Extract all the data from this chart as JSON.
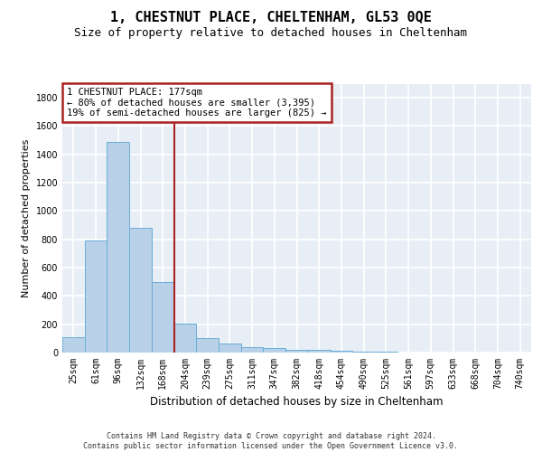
{
  "title": "1, CHESTNUT PLACE, CHELTENHAM, GL53 0QE",
  "subtitle": "Size of property relative to detached houses in Cheltenham",
  "xlabel": "Distribution of detached houses by size in Cheltenham",
  "ylabel": "Number of detached properties",
  "categories": [
    "25sqm",
    "61sqm",
    "96sqm",
    "132sqm",
    "168sqm",
    "204sqm",
    "239sqm",
    "275sqm",
    "311sqm",
    "347sqm",
    "382sqm",
    "418sqm",
    "454sqm",
    "490sqm",
    "525sqm",
    "561sqm",
    "597sqm",
    "633sqm",
    "668sqm",
    "704sqm",
    "740sqm"
  ],
  "values": [
    110,
    790,
    1490,
    880,
    500,
    205,
    100,
    65,
    40,
    30,
    22,
    18,
    10,
    5,
    4,
    3,
    2,
    2,
    1,
    1,
    1
  ],
  "bar_color": "#b8d0e8",
  "bar_edgecolor": "#6aaed6",
  "vline_color": "#aa2222",
  "annotation_box_edgecolor": "#aa2222",
  "fig_bg": "#ffffff",
  "plot_bg": "#e8eef6",
  "grid_color": "#ffffff",
  "ylim": [
    0,
    1900
  ],
  "yticks": [
    0,
    200,
    400,
    600,
    800,
    1000,
    1200,
    1400,
    1600,
    1800
  ],
  "footer": "Contains HM Land Registry data © Crown copyright and database right 2024.\nContains public sector information licensed under the Open Government Licence v3.0.",
  "annotation_line1": "1 CHESTNUT PLACE: 177sqm",
  "annotation_line2": "← 80% of detached houses are smaller (3,395)",
  "annotation_line3": "19% of semi-detached houses are larger (825) →",
  "vline_pos": 4.5,
  "title_fontsize": 11,
  "subtitle_fontsize": 9,
  "tick_fontsize": 7,
  "ylabel_fontsize": 8,
  "xlabel_fontsize": 8.5,
  "annotation_fontsize": 7.5,
  "footer_fontsize": 6
}
